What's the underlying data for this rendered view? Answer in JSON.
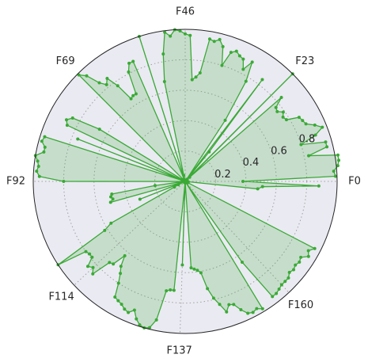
{
  "chart_data": {
    "type": "radar",
    "title": "",
    "n_points": 184,
    "angle_tick_labels": [
      "F0",
      "F23",
      "F46",
      "F69",
      "F92",
      "F114",
      "F137",
      "F160"
    ],
    "angle_tick_index": [
      0,
      23,
      46,
      69,
      92,
      114,
      137,
      160
    ],
    "r_tick_labels": [
      "0.2",
      "0.4",
      "0.6",
      "0.8"
    ],
    "r_ticks": [
      0.2,
      0.4,
      0.6,
      0.8
    ],
    "rlim": [
      0,
      1
    ],
    "grid": true,
    "series": [
      {
        "color": "#3aaa35",
        "fill": "#3aaa35",
        "values": [
          0.38,
          0.99,
          0.98,
          1.01,
          1.02,
          1.02,
          0.83,
          0.96,
          0.96,
          0.8,
          0.91,
          0.97,
          0.93,
          0.88,
          0.87,
          0.86,
          0.78,
          0.77,
          0.79,
          0.76,
          0.77,
          0.84,
          0.04,
          1.0,
          0.02,
          0.01,
          0.25,
          0.84,
          0.01,
          0.48,
          0.77,
          0.9,
          0.83,
          0.89,
          0.9,
          0.92,
          0.9,
          0.8,
          0.92,
          0.96,
          0.94,
          0.95,
          0.72,
          0.69,
          0.67,
          0.96,
          0.97,
          0.99,
          1.0,
          0.96,
          0.99,
          0.85,
          0.67,
          0.04,
          0.01,
          1.0,
          0.01,
          0.01,
          0.86,
          0.86,
          0.81,
          0.66,
          0.66,
          0.65,
          0.77,
          0.85,
          0.82,
          0.86,
          0.95,
          0.99,
          0.01,
          0.02,
          0.02,
          0.01,
          0.01,
          0.01,
          0.66,
          0.85,
          0.88,
          0.86,
          0.02,
          0.76,
          0.01,
          0.97,
          0.98,
          0.95,
          0.95,
          1.0,
          0.98,
          0.97,
          0.98,
          0.96,
          0.8,
          0.02,
          0.01,
          0.01,
          0.2,
          0.49,
          0.5,
          0.49,
          0.51,
          0.01,
          0.01,
          0.32,
          0.01,
          0.05,
          0.08,
          0.56,
          0.62,
          1.0,
          0.8,
          0.79,
          0.79,
          0.85,
          0.83,
          0.86,
          0.73,
          0.72,
          0.63,
          0.7,
          0.74,
          0.8,
          0.89,
          0.9,
          0.91,
          0.93,
          0.94,
          0.91,
          0.96,
          0.99,
          1.0,
          0.99,
          0.93,
          0.73,
          0.72,
          0.72,
          0.01,
          0.55,
          0.01,
          0.01,
          0.57,
          0.58,
          0.59,
          0.61,
          0.72,
          0.79,
          0.84,
          0.9,
          0.86,
          0.87,
          0.92,
          0.96,
          0.97,
          0.96,
          0.98,
          0.01,
          0.65,
          0.95,
          0.95,
          0.94,
          0.93,
          0.93,
          0.93,
          0.91,
          0.92,
          0.91,
          0.92,
          0.91,
          0.95,
          0.93,
          0.96,
          0.01,
          0.01,
          0.02,
          0.01,
          0.01,
          0.02,
          0.01,
          0.01,
          0.02,
          0.01,
          0.48,
          0.51,
          0.88
        ]
      }
    ]
  }
}
